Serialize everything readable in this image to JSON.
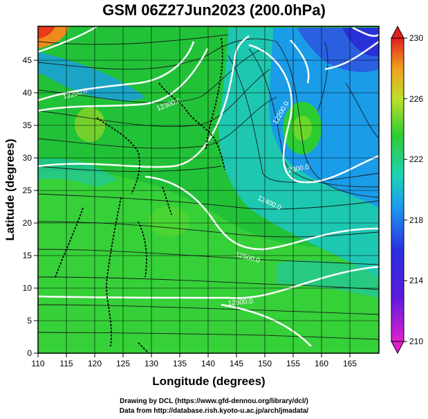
{
  "title": "GSM 06Z27Jun2023 (200.0hPa)",
  "xlabel": "Longitude (degrees)",
  "ylabel": "Latitude  (degrees)",
  "credits": [
    "Drawing by DCL (https://www.gfd-dennou.org/library/dcl/)",
    "Data from http://database.rish.kyoto-u.ac.jp/arch/jmadata/"
  ],
  "x_ticks": [
    "110",
    "115",
    "120",
    "125",
    "130",
    "135",
    "140",
    "145",
    "150",
    "155",
    "160",
    "165"
  ],
  "y_ticks": [
    "0",
    "5",
    "10",
    "15",
    "20",
    "25",
    "30",
    "35",
    "40",
    "45"
  ],
  "colorbar_ticks": [
    "210",
    "214",
    "218",
    "222",
    "226",
    "230"
  ],
  "contour_labels": [
    "12200.0",
    "12300.0",
    "12400.0",
    "12500.0",
    "12200.0",
    "12300.0",
    "12400.0",
    "12500.0",
    "12600.0"
  ],
  "colors": {
    "green": "#2ecc33",
    "cyan": "#1fd3b0",
    "blue": "#2a6fe0",
    "orange": "#f08a1e",
    "contour": "#ffffff",
    "coast": "#000000"
  },
  "map_data": {
    "extent": {
      "lon": [
        110,
        170
      ],
      "lat": [
        0,
        50
      ]
    },
    "field": "temperature (K)",
    "colorbar_range": [
      210,
      230
    ],
    "contour_field": "geopotential height (m)"
  }
}
